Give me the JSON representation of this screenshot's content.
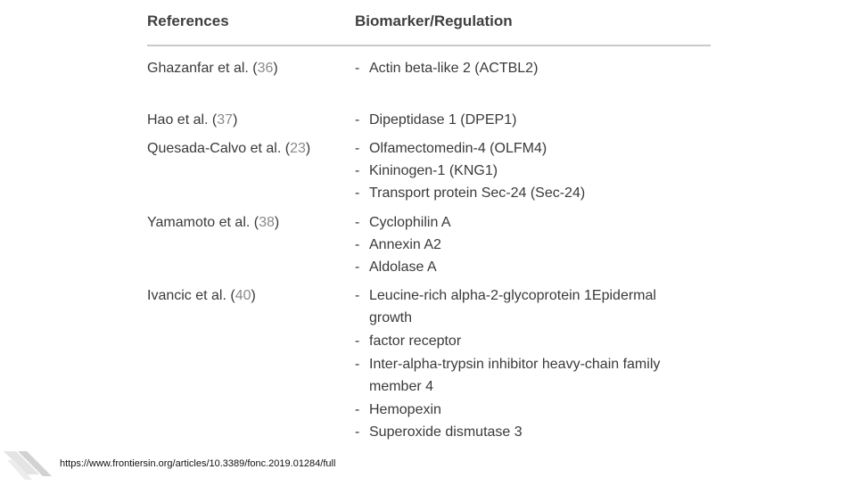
{
  "table": {
    "header_references": "References",
    "header_biomarker": "Biomarker/Regulation",
    "rows": [
      {
        "author": "Ghazanfar et al. (",
        "cite": "36",
        "close": ")",
        "items": [
          "Actin beta-like 2 (ACTBL2)"
        ]
      },
      {
        "author": "Hao et al. (",
        "cite": "37",
        "close": ")",
        "items": [
          "Dipeptidase 1 (DPEP1)"
        ]
      },
      {
        "author": "Quesada-Calvo et al. (",
        "cite": "23",
        "close": ")",
        "items": [
          "Olfamectomedin-4 (OLFM4)",
          "Kininogen-1 (KNG1)",
          "Transport protein Sec-24 (Sec-24)"
        ]
      },
      {
        "author": "Yamamoto et al. (",
        "cite": "38",
        "close": ")",
        "items": [
          "Cyclophilin A",
          "Annexin A2",
          "Aldolase A"
        ]
      },
      {
        "author": "Ivancic et al. (",
        "cite": "40",
        "close": ")",
        "items": [
          "Leucine-rich alpha-2-glycoprotein 1Epidermal",
          "factor receptor",
          "Inter-alpha-trypsin inhibitor heavy-chain family",
          "Hemopexin",
          "Superoxide dismutase 3"
        ],
        "continuations": [
          "growth",
          "member 4"
        ]
      }
    ],
    "bullet": "-"
  },
  "footer": {
    "url": "https://www.frontiersin.org/articles/10.3389/fonc.2019.01284/full"
  }
}
